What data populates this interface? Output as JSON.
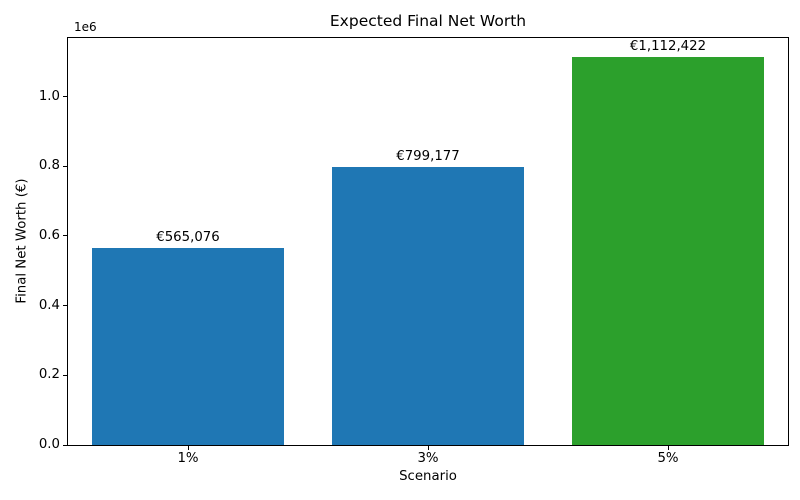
{
  "chart_data": {
    "type": "bar",
    "title": "Expected Final Net Worth",
    "xlabel": "Scenario",
    "ylabel": "Final Net Worth (€)",
    "y_offset_text": "1e6",
    "categories": [
      "1%",
      "3%",
      "5%"
    ],
    "values": [
      565076,
      799177,
      1112422
    ],
    "bar_labels": [
      "€565,076",
      "€799,177",
      "€1,112,422"
    ],
    "bar_colors": [
      "#1f77b4",
      "#1f77b4",
      "#2ca02c"
    ],
    "ylim": [
      0,
      1168043
    ],
    "yticks": [
      {
        "value": 0,
        "label": "0.0"
      },
      {
        "value": 200000,
        "label": "0.2"
      },
      {
        "value": 400000,
        "label": "0.4"
      },
      {
        "value": 600000,
        "label": "0.6"
      },
      {
        "value": 800000,
        "label": "0.8"
      },
      {
        "value": 1000000,
        "label": "1.0"
      }
    ],
    "grid": false,
    "legend": null,
    "bar_width_fraction": 0.8,
    "spine_color": "#000000",
    "text_color": "#000000",
    "background_color": "#ffffff"
  }
}
